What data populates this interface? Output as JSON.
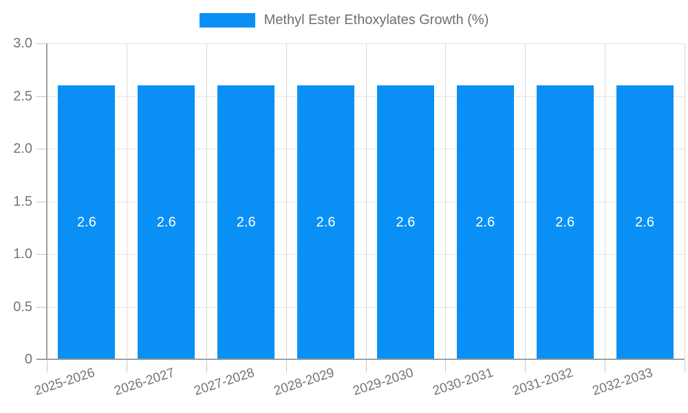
{
  "legend": {
    "label": "Methyl Ester Ethoxylates Growth (%)"
  },
  "chart_data": {
    "type": "bar",
    "title": "Methyl Ester Ethoxylates Growth (%)",
    "categories": [
      "2025-2026",
      "2026-2027",
      "2027-2028",
      "2028-2029",
      "2029-2030",
      "2030-2031",
      "2031-2032",
      "2032-2033"
    ],
    "series": [
      {
        "name": "Methyl Ester Ethoxylates Growth (%)",
        "values": [
          2.6,
          2.6,
          2.6,
          2.6,
          2.6,
          2.6,
          2.6,
          2.6
        ],
        "color": "#0a90f5"
      }
    ],
    "bar_labels": [
      "2.6",
      "2.6",
      "2.6",
      "2.6",
      "2.6",
      "2.6",
      "2.6",
      "2.6"
    ],
    "xlabel": "",
    "ylabel": "",
    "ylim": [
      0,
      3
    ],
    "ytick_values": [
      0,
      0.5,
      1,
      1.5,
      2,
      2.5,
      3
    ],
    "ytick_labels": [
      "0",
      "0.5",
      "1.0",
      "1.5",
      "2.0",
      "2.5",
      "3.0"
    ],
    "grid": true,
    "legend_position": "top",
    "colors": {
      "bar": "#0a90f5",
      "bar_label_text": "#ffffff",
      "axis_text": "#757575",
      "legend_text": "#6e6e6e",
      "gridline": "#e4e4e4",
      "axis_line": "#9e9e9e",
      "background": "#ffffff"
    }
  }
}
